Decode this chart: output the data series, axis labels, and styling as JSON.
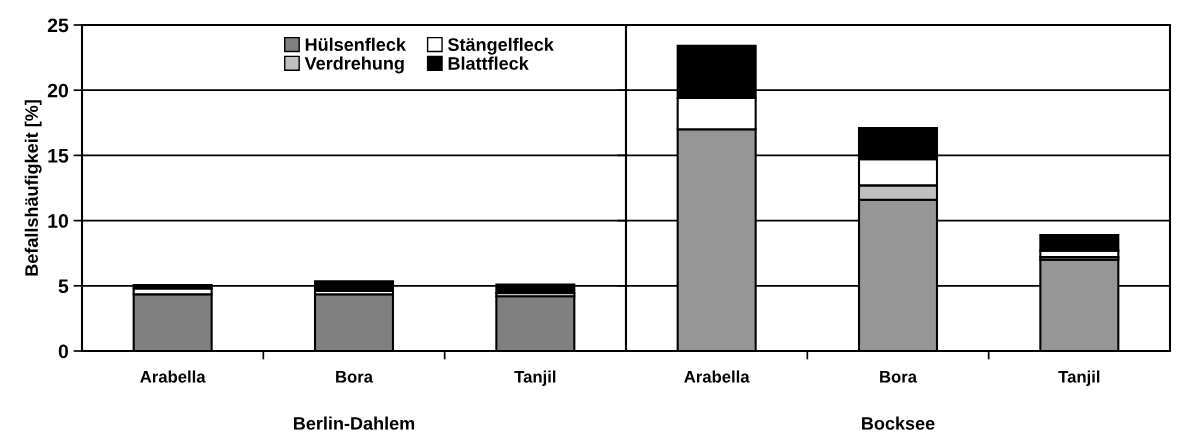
{
  "chart_data": [
    {
      "type": "bar",
      "stacked": true,
      "ylabel": "Befallshäufigkeit [%]",
      "xlabel": "Berlin-Dahlem",
      "categories": [
        "Arabella",
        "Bora",
        "Tanjil"
      ],
      "ylim": [
        0,
        25
      ],
      "yticks": [
        0,
        5,
        10,
        15,
        20,
        25
      ],
      "grid": "y",
      "legend": "top",
      "series": [
        {
          "name": "Hülsenfleck",
          "color": "#808080",
          "values": [
            4.35,
            4.35,
            4.2
          ]
        },
        {
          "name": "Verdrehung",
          "color": "#c0c0c0",
          "values": [
            0,
            0,
            0.25
          ]
        },
        {
          "name": "Stängelfleck",
          "color": "#ffffff",
          "values": [
            0.45,
            0.25,
            0
          ]
        },
        {
          "name": "Blattfleck",
          "color": "#000000",
          "values": [
            0.25,
            0.75,
            0.65
          ]
        }
      ]
    },
    {
      "type": "bar",
      "stacked": true,
      "xlabel": "Bocksee",
      "categories": [
        "Arabella",
        "Bora",
        "Tanjil"
      ],
      "ylim": [
        0,
        25
      ],
      "yticks": [
        0,
        5,
        10,
        15,
        20,
        25
      ],
      "tick_labels": "x",
      "grid": "y",
      "series": [
        {
          "color": "#969696",
          "values": [
            17.0,
            11.6,
            7.0
          ]
        },
        {
          "color": "#c0c0c0",
          "values": [
            0,
            1.1,
            0.2
          ]
        },
        {
          "color": "#ffffff",
          "values": [
            2.4,
            2.0,
            0.5
          ]
        },
        {
          "color": "#000000",
          "values": [
            4.0,
            2.4,
            1.2
          ]
        }
      ]
    }
  ]
}
